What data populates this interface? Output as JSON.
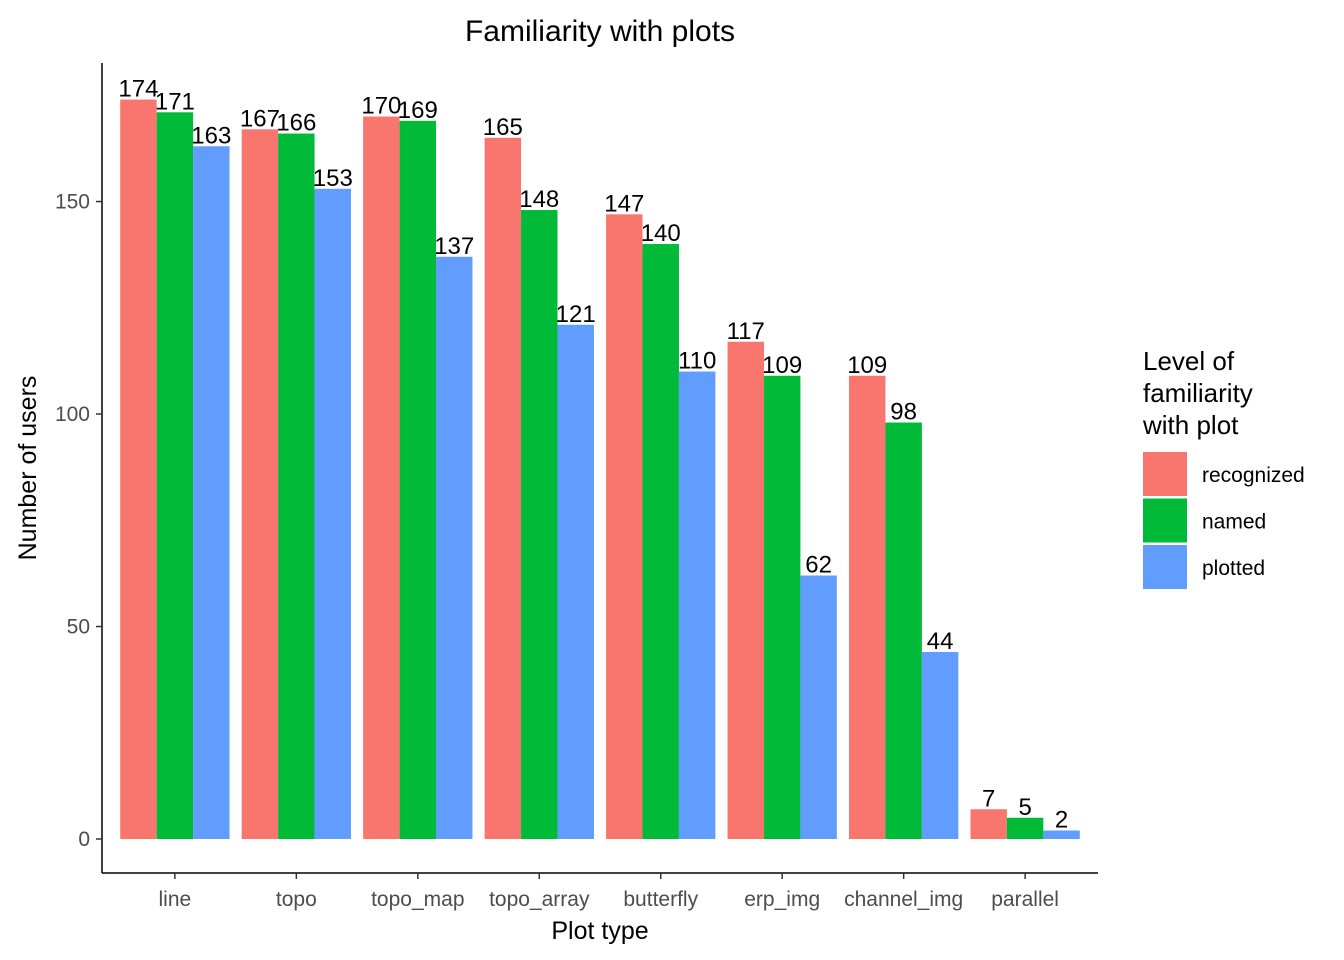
{
  "chart_data": {
    "type": "bar",
    "title": "Familiarity with plots",
    "xlabel": "Plot type",
    "ylabel": "Number of users",
    "categories": [
      "line",
      "topo",
      "topo_map",
      "topo_array",
      "butterfly",
      "erp_img",
      "channel_img",
      "parallel"
    ],
    "series": [
      {
        "name": "recognized",
        "color": "#F8766D",
        "values": [
          174,
          167,
          170,
          165,
          147,
          117,
          109,
          7
        ]
      },
      {
        "name": "named",
        "color": "#00BA38",
        "values": [
          171,
          166,
          169,
          148,
          140,
          109,
          98,
          5
        ]
      },
      {
        "name": "plotted",
        "color": "#619CFF",
        "values": [
          163,
          153,
          137,
          121,
          110,
          62,
          44,
          2
        ]
      }
    ],
    "yticks": [
      0,
      50,
      100,
      150
    ],
    "ylim": [
      -8,
      182.6
    ],
    "grid": false,
    "legend": {
      "title_lines": [
        "Level of",
        "familiarity",
        "with plot"
      ],
      "placement": "right"
    }
  }
}
